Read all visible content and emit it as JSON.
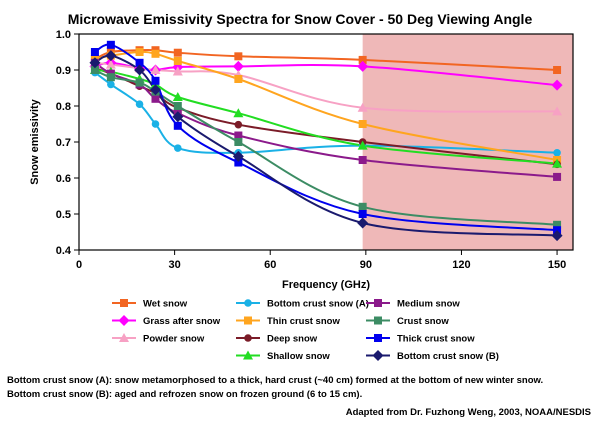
{
  "chart_data": {
    "type": "line",
    "title": "Microwave Emissivity Spectra for Snow Cover - 50 Deg Viewing Angle",
    "xlabel": "Frequency (GHz)",
    "ylabel": "Snow emissivity",
    "xlim": [
      0,
      155
    ],
    "ylim": [
      0.4,
      1.0
    ],
    "xticks": [
      0,
      30,
      60,
      90,
      120,
      150
    ],
    "yticks": [
      0.4,
      0.5,
      0.6,
      0.7,
      0.8,
      0.9,
      1.0
    ],
    "ytick_labels": [
      "0.4",
      "0.5",
      "0.6",
      "0.7",
      "0.8",
      "0.9",
      "1.0"
    ],
    "grid": false,
    "shaded_region": {
      "x_from": 89,
      "x_to": 155,
      "color": "#efb8b8"
    },
    "legend_position": "bottom",
    "series": [
      {
        "name": "Wet snow",
        "color": "#f26522",
        "marker": "square",
        "x": [
          5,
          10,
          19,
          24,
          31,
          50,
          89,
          150
        ],
        "y": [
          0.93,
          0.95,
          0.955,
          0.955,
          0.948,
          0.938,
          0.928,
          0.9
        ]
      },
      {
        "name": "Grass after snow",
        "color": "#ff00ff",
        "marker": "diamond",
        "x": [
          5,
          10,
          19,
          24,
          31,
          50,
          89,
          150
        ],
        "y": [
          0.91,
          0.92,
          0.905,
          0.9,
          0.908,
          0.91,
          0.91,
          0.858
        ]
      },
      {
        "name": "Powder snow",
        "color": "#f7a1c4",
        "marker": "triangle",
        "x": [
          5,
          10,
          19,
          24,
          31,
          50,
          89,
          150
        ],
        "y": [
          0.92,
          0.915,
          0.905,
          0.9,
          0.896,
          0.886,
          0.795,
          0.785
        ]
      },
      {
        "name": "Bottom crust snow (A)",
        "color": "#1ab1e6",
        "marker": "circle",
        "x": [
          5,
          10,
          19,
          24,
          31,
          50,
          89,
          150
        ],
        "y": [
          0.893,
          0.86,
          0.805,
          0.75,
          0.683,
          0.67,
          0.69,
          0.67
        ]
      },
      {
        "name": "Thin crust snow",
        "color": "#ffa51f",
        "marker": "square",
        "x": [
          5,
          10,
          19,
          24,
          31,
          50,
          89,
          150
        ],
        "y": [
          0.93,
          0.94,
          0.95,
          0.945,
          0.925,
          0.875,
          0.75,
          0.65
        ]
      },
      {
        "name": "Deep snow",
        "color": "#7b1c28",
        "marker": "circle",
        "x": [
          5,
          10,
          19,
          24,
          31,
          50,
          89,
          150
        ],
        "y": [
          0.905,
          0.89,
          0.855,
          0.835,
          0.795,
          0.748,
          0.7,
          0.638
        ]
      },
      {
        "name": "Shallow snow",
        "color": "#22dd22",
        "marker": "triangle",
        "x": [
          5,
          10,
          19,
          24,
          31,
          50,
          89,
          150
        ],
        "y": [
          0.9,
          0.895,
          0.875,
          0.86,
          0.825,
          0.78,
          0.69,
          0.64
        ]
      },
      {
        "name": "Medium snow",
        "color": "#8b1a8b",
        "marker": "square",
        "x": [
          5,
          10,
          19,
          24,
          31,
          50,
          89,
          150
        ],
        "y": [
          0.92,
          0.89,
          0.86,
          0.82,
          0.78,
          0.718,
          0.65,
          0.603
        ]
      },
      {
        "name": "Crust snow",
        "color": "#3c8c64",
        "marker": "square",
        "x": [
          5,
          10,
          19,
          24,
          31,
          50,
          89,
          150
        ],
        "y": [
          0.9,
          0.88,
          0.865,
          0.84,
          0.8,
          0.7,
          0.52,
          0.47
        ]
      },
      {
        "name": "Thick crust snow",
        "color": "#0000ee",
        "marker": "square",
        "x": [
          5,
          10,
          19,
          24,
          31,
          50,
          89,
          150
        ],
        "y": [
          0.95,
          0.97,
          0.92,
          0.87,
          0.745,
          0.643,
          0.5,
          0.455
        ]
      },
      {
        "name": "Bottom crust snow (B)",
        "color": "#1a1a6e",
        "marker": "diamond",
        "x": [
          5,
          10,
          19,
          24,
          31,
          50,
          89,
          150
        ],
        "y": [
          0.92,
          0.94,
          0.9,
          0.845,
          0.77,
          0.66,
          0.475,
          0.44
        ]
      }
    ]
  },
  "notes": {
    "note_a": "Bottom crust snow (A): snow metamorphosed to a thick, hard crust (~40 cm) formed at the bottom of new winter snow.",
    "note_b": "Bottom crust snow (B): aged and refrozen snow on frozen ground (6 to 15 cm).",
    "credit": "Adapted from Dr. Fuzhong Weng, 2003, NOAA/NESDIS"
  }
}
